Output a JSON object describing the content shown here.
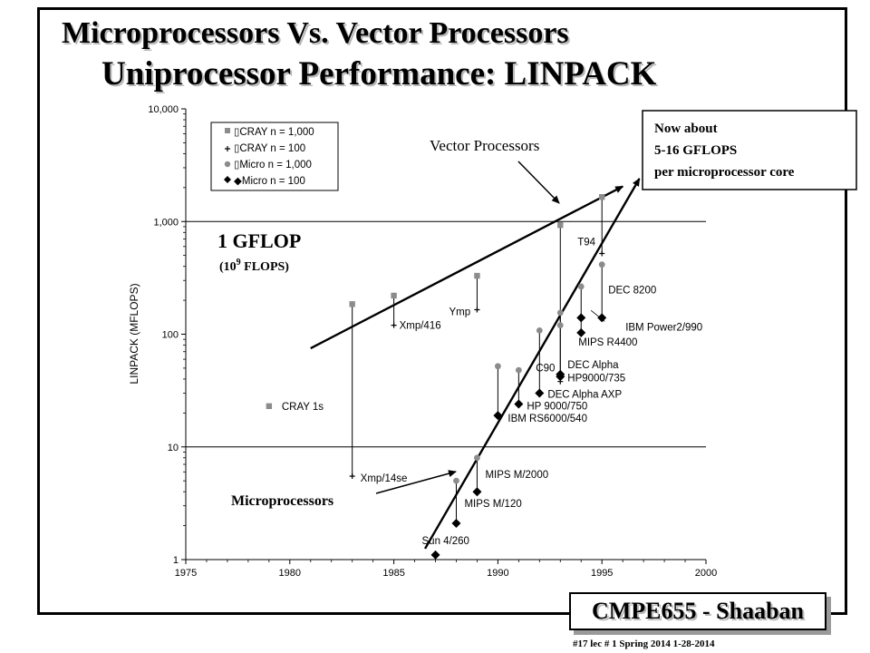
{
  "slide": {
    "title_line1": "Microprocessors Vs. Vector Processors",
    "title_line2": "Uniprocessor Performance: LINPACK",
    "footer_box": "CMPE655 - Shaaban",
    "footnote": "#17   lec # 1   Spring 2014   1-28-2014"
  },
  "annotations": {
    "vector_processors": "Vector Processors",
    "microprocessors": "Microprocessors",
    "gflop_main": "1 GFLOP",
    "gflop_sub_prefix": "(10",
    "gflop_sub_exp": "9",
    "gflop_sub_suffix": " FLOPS)",
    "now_line1": "Now about",
    "now_line2": "5-16 GFLOPS",
    "now_line3": "per microprocessor core"
  },
  "colors": {
    "cray_marker": "#8c8c8c",
    "micro1000_marker": "#8c8c8c",
    "micro100_marker": "#000000",
    "axis": "#000000"
  },
  "chart_data": {
    "type": "scatter",
    "title": "",
    "xlabel": "",
    "ylabel": "LINPACK (MFLOPS)",
    "xlim": [
      1975,
      2000
    ],
    "ylim": [
      1,
      10000
    ],
    "y_scale": "log",
    "x_ticks": [
      "1975",
      "1980",
      "1985",
      "1990",
      "1995",
      "2000"
    ],
    "y_ticks": [
      "1",
      "10",
      "100",
      "1,000",
      "10,000"
    ],
    "reference_lines": [
      1000,
      10
    ],
    "legend": {
      "placement": "top-left",
      "entries": [
        {
          "label": "CRAY n = 1,000",
          "marker": "square",
          "series": "cray_n1000"
        },
        {
          "label": "CRAY n = 100",
          "marker": "plus",
          "series": "cray_n100"
        },
        {
          "label": "Micro n = 1,000",
          "marker": "circle",
          "series": "micro_n1000"
        },
        {
          "label": "Micro n = 100",
          "marker": "diamond",
          "series": "micro_n100"
        }
      ]
    },
    "series": [
      {
        "name": "CRAY n = 1,000",
        "key": "cray_n1000",
        "points": [
          {
            "x": 1979,
            "y": 23
          },
          {
            "x": 1983,
            "y": 185
          },
          {
            "x": 1985,
            "y": 220
          },
          {
            "x": 1989,
            "y": 330
          },
          {
            "x": 1993,
            "y": 930
          },
          {
            "x": 1995,
            "y": 1650
          }
        ]
      },
      {
        "name": "CRAY n = 100",
        "key": "cray_n100",
        "points": [
          {
            "x": 1983,
            "y": 5.5
          },
          {
            "x": 1985,
            "y": 120
          },
          {
            "x": 1989,
            "y": 165
          },
          {
            "x": 1993,
            "y": 38
          },
          {
            "x": 1995,
            "y": 520
          }
        ]
      },
      {
        "name": "Micro n = 1,000",
        "key": "micro_n1000",
        "points": [
          {
            "x": 1987,
            "y": 1.1
          },
          {
            "x": 1988,
            "y": 5
          },
          {
            "x": 1989,
            "y": 8
          },
          {
            "x": 1990,
            "y": 52
          },
          {
            "x": 1991,
            "y": 48
          },
          {
            "x": 1992,
            "y": 108
          },
          {
            "x": 1993,
            "y": 155
          },
          {
            "x": 1993,
            "y": 120
          },
          {
            "x": 1994,
            "y": 265
          },
          {
            "x": 1995,
            "y": 415
          }
        ]
      },
      {
        "name": "Micro n = 100",
        "key": "micro_n100",
        "points": [
          {
            "x": 1987,
            "y": 1.1
          },
          {
            "x": 1988,
            "y": 2.1
          },
          {
            "x": 1989,
            "y": 4
          },
          {
            "x": 1990,
            "y": 19
          },
          {
            "x": 1991,
            "y": 24
          },
          {
            "x": 1992,
            "y": 30
          },
          {
            "x": 1993,
            "y": 42
          },
          {
            "x": 1993,
            "y": 44
          },
          {
            "x": 1994,
            "y": 103
          },
          {
            "x": 1994,
            "y": 140
          },
          {
            "x": 1995,
            "y": 140
          }
        ]
      }
    ],
    "drop_lines": [
      {
        "x": 1983,
        "y_top": 185,
        "y_bottom": 5.5
      },
      {
        "x": 1985,
        "y_top": 220,
        "y_bottom": 120
      },
      {
        "x": 1989,
        "y_top": 330,
        "y_bottom": 165
      },
      {
        "x": 1993,
        "y_top": 930,
        "y_bottom": 38
      },
      {
        "x": 1995,
        "y_top": 1650,
        "y_bottom": 520
      },
      {
        "x": 1988,
        "y_top": 5,
        "y_bottom": 2.1
      },
      {
        "x": 1989,
        "y_top": 8,
        "y_bottom": 4
      },
      {
        "x": 1990,
        "y_top": 52,
        "y_bottom": 19
      },
      {
        "x": 1991,
        "y_top": 48,
        "y_bottom": 24
      },
      {
        "x": 1992,
        "y_top": 108,
        "y_bottom": 30
      },
      {
        "x": 1993,
        "y_top": 155,
        "y_bottom": 44
      },
      {
        "x": 1994,
        "y_top": 265,
        "y_bottom": 103
      },
      {
        "x": 1995,
        "y_top": 415,
        "y_bottom": 140
      }
    ],
    "point_labels": [
      {
        "text": "CRAY 1s",
        "x": 1979,
        "y": 23
      },
      {
        "text": "Xmp/14se",
        "x": 1983,
        "y": 5.5
      },
      {
        "text": "Xmp/416",
        "x": 1985,
        "y": 120
      },
      {
        "text": "Ymp",
        "x": 1989,
        "y": 165
      },
      {
        "text": "C90",
        "x": 1993,
        "y": 38
      },
      {
        "text": "T94",
        "x": 1995,
        "y": 520
      },
      {
        "text": "DEC 8200",
        "x": 1995,
        "y": 415
      },
      {
        "text": "IBM Power2/990",
        "x": 1995,
        "y": 140
      },
      {
        "text": "MIPS R4400",
        "x": 1994,
        "y": 103
      },
      {
        "text": "DEC Alpha",
        "x": 1993,
        "y": 44
      },
      {
        "text": "HP9000/735",
        "x": 1993,
        "y": 42
      },
      {
        "text": "DEC Alpha AXP",
        "x": 1992,
        "y": 30
      },
      {
        "text": "HP 9000/750",
        "x": 1991,
        "y": 24
      },
      {
        "text": "IBM RS6000/540",
        "x": 1990,
        "y": 19
      },
      {
        "text": "MIPS M/2000",
        "x": 1989,
        "y": 8
      },
      {
        "text": "MIPS M/120",
        "x": 1988,
        "y": 2.1
      },
      {
        "text": "Sun 4/260",
        "x": 1987,
        "y": 1.1
      }
    ],
    "trend_lines": [
      {
        "name": "Vector Processors",
        "from": {
          "x": 1981,
          "y": 75
        },
        "to": {
          "x": 1996,
          "y": 2050
        }
      },
      {
        "name": "Microprocessors",
        "from": {
          "x": 1986.5,
          "y": 1.25
        },
        "to": {
          "x": 1996.8,
          "y": 2400
        }
      }
    ]
  }
}
